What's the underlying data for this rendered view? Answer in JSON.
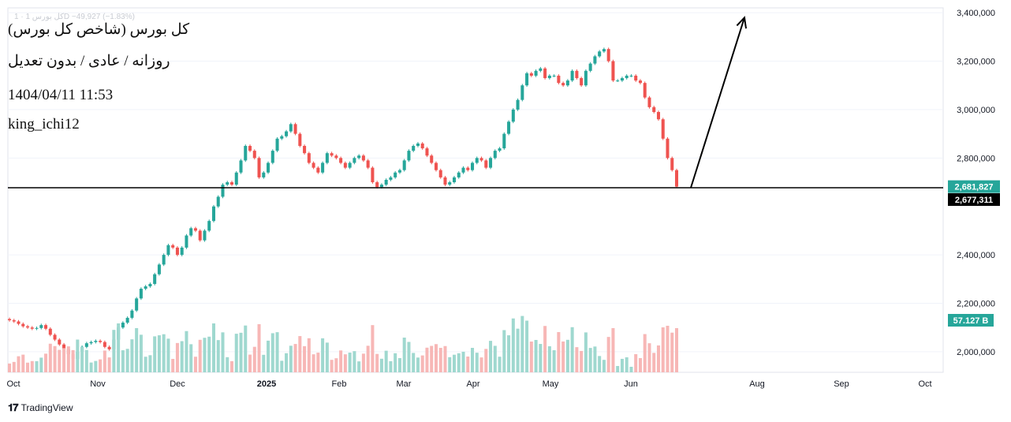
{
  "header": {
    "ghost_line": "کل بورس 1 · 1D  −49,927 (−1.83%)",
    "symbol_title": "کل بورس (شاخص کل بورس)",
    "subtitle": "روزانه / عادی / بدون تعدیل",
    "datetime": "1404/04/11 11:53",
    "author": "king_ichi12"
  },
  "branding": {
    "logo_icon": "tradingview-logo-icon",
    "text": "TradingView"
  },
  "colors": {
    "up": "#26a69a",
    "down": "#ef5350",
    "vol_up": "#9fd8cf",
    "vol_down": "#f7b7b6",
    "line": "#000000",
    "grid": "#f0f3fa",
    "axis_text": "#131722"
  },
  "chart_data": {
    "type": "candlestick",
    "title": "کل بورس (شاخص کل بورس)",
    "y_axis": {
      "ticks": [
        "2,000,000",
        "2,200,000",
        "2,400,000",
        "2,800,000",
        "3,000,000",
        "3,200,000",
        "3,400,000"
      ],
      "range": [
        1915000,
        3420000
      ]
    },
    "x_axis": {
      "ticks": [
        "Oct",
        "Nov",
        "Dec",
        "2025",
        "Feb",
        "Mar",
        "Apr",
        "May",
        "Jun",
        "Aug",
        "Sep",
        "Oct"
      ]
    },
    "price_labels": [
      {
        "text": "2,681,827",
        "value": 2681827,
        "kind": "last"
      },
      {
        "text": "2,677,311",
        "value": 2677311,
        "kind": "level"
      }
    ],
    "volume_label": "57.127 B",
    "horizontal_level": 2677311,
    "projection_arrow": {
      "from": 2677311,
      "to": 3380000,
      "direction": "up"
    },
    "series": [
      {
        "name": "close",
        "values": [
          2130000,
          2125000,
          2115000,
          2105000,
          2100000,
          2095000,
          2098000,
          2110000,
          2095000,
          2070000,
          2050000,
          2030000,
          2010000,
          1990000,
          1970000,
          2000000,
          2020000,
          2035000,
          2040000,
          2045000,
          2040000,
          2020000,
          2010000,
          2050000,
          2100000,
          2120000,
          2140000,
          2170000,
          2220000,
          2260000,
          2270000,
          2280000,
          2320000,
          2360000,
          2400000,
          2440000,
          2430000,
          2400000,
          2430000,
          2480000,
          2510000,
          2500000,
          2460000,
          2500000,
          2540000,
          2600000,
          2640000,
          2690000,
          2700000,
          2690000,
          2740000,
          2790000,
          2850000,
          2830000,
          2800000,
          2720000,
          2740000,
          2780000,
          2830000,
          2880000,
          2890000,
          2910000,
          2940000,
          2900000,
          2850000,
          2820000,
          2780000,
          2760000,
          2740000,
          2780000,
          2820000,
          2810000,
          2800000,
          2780000,
          2760000,
          2780000,
          2800000,
          2810000,
          2790000,
          2760000,
          2700000,
          2680000,
          2690000,
          2710000,
          2720000,
          2740000,
          2750000,
          2790000,
          2830000,
          2850000,
          2860000,
          2840000,
          2810000,
          2780000,
          2750000,
          2720000,
          2690000,
          2700000,
          2720000,
          2740000,
          2760000,
          2750000,
          2780000,
          2800000,
          2790000,
          2760000,
          2800000,
          2830000,
          2840000,
          2900000,
          2950000,
          3000000,
          3040000,
          3100000,
          3150000,
          3140000,
          3160000,
          3170000,
          3130000,
          3140000,
          3140000,
          3110000,
          3100000,
          3120000,
          3160000,
          3130000,
          3100000,
          3160000,
          3190000,
          3220000,
          3240000,
          3250000,
          3200000,
          3120000,
          3120000,
          3130000,
          3140000,
          3140000,
          3120000,
          3110000,
          3050000,
          3010000,
          2990000,
          2960000,
          2880000,
          2800000,
          2750000,
          2681827
        ]
      }
    ]
  }
}
